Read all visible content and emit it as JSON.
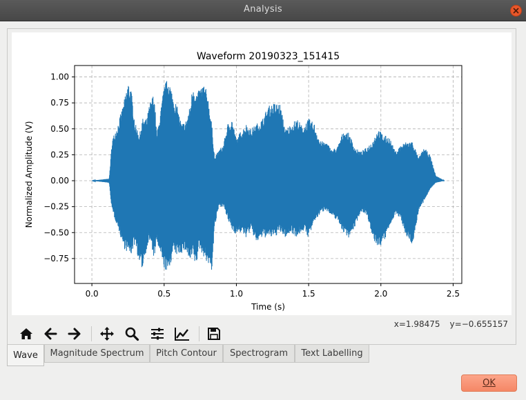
{
  "window": {
    "title": "Analysis"
  },
  "toolbar": {
    "icons": [
      "home-icon",
      "back-arrow-icon",
      "forward-arrow-icon",
      "pan-move-icon",
      "zoom-magnifier-icon",
      "configure-subplots-icon",
      "edit-axis-curve-icon",
      "save-floppy-icon"
    ]
  },
  "status": {
    "x_readout": "x=1.98475",
    "y_readout": "y=−0.655157"
  },
  "tabs": [
    {
      "label": "Wave",
      "active": true
    },
    {
      "label": "Magnitude Spectrum",
      "active": false
    },
    {
      "label": "Pitch Contour",
      "active": false
    },
    {
      "label": "Spectrogram",
      "active": false
    },
    {
      "label": "Text Labelling",
      "active": false
    }
  ],
  "dialog": {
    "ok_label": "OK"
  },
  "colors": {
    "waveform": "#1f77b4",
    "grid": "#b0b0b0",
    "ok_button": "#f58766",
    "close_button": "#e8572a"
  },
  "chart_data": {
    "type": "line",
    "title": "Waveform 20190323_151415",
    "xlabel": "Time (s)",
    "ylabel": "Normalized Amplitude (V)",
    "xlim": [
      -0.12,
      2.56
    ],
    "ylim": [
      -0.99,
      1.11
    ],
    "xticks": [
      "0.0",
      "0.5",
      "1.0",
      "1.5",
      "2.0",
      "2.5"
    ],
    "xtick_values": [
      0.0,
      0.5,
      1.0,
      1.5,
      2.0,
      2.5
    ],
    "yticks": [
      "1.00",
      "0.75",
      "0.50",
      "0.25",
      "0.00",
      "−0.25",
      "−0.50",
      "−0.75"
    ],
    "ytick_values": [
      1.0,
      0.75,
      0.5,
      0.25,
      0.0,
      -0.25,
      -0.5,
      -0.75
    ],
    "grid": true,
    "series": [
      {
        "envelope_time": [
          0.0,
          0.12,
          0.14,
          0.18,
          0.22,
          0.25,
          0.27,
          0.3,
          0.33,
          0.35,
          0.38,
          0.4,
          0.43,
          0.45,
          0.48,
          0.5,
          0.53,
          0.56,
          0.59,
          0.62,
          0.65,
          0.68,
          0.7,
          0.72,
          0.74,
          0.77,
          0.8,
          0.83,
          0.85,
          0.88,
          0.91,
          0.94,
          0.97,
          1.0,
          1.03,
          1.07,
          1.1,
          1.14,
          1.18,
          1.22,
          1.26,
          1.3,
          1.34,
          1.38,
          1.42,
          1.46,
          1.5,
          1.54,
          1.58,
          1.62,
          1.66,
          1.7,
          1.74,
          1.78,
          1.82,
          1.86,
          1.9,
          1.94,
          1.98,
          2.02,
          2.06,
          2.1,
          2.14,
          2.18,
          2.22,
          2.26,
          2.3,
          2.34,
          2.38,
          2.44
        ],
        "envelope_upper": [
          0.0,
          0.02,
          0.4,
          0.55,
          0.75,
          0.96,
          0.9,
          0.55,
          0.45,
          0.6,
          0.6,
          0.75,
          0.85,
          0.45,
          0.72,
          0.92,
          1.0,
          0.83,
          0.72,
          0.55,
          0.58,
          0.72,
          0.95,
          0.85,
          0.87,
          0.95,
          0.85,
          0.55,
          0.22,
          0.3,
          0.35,
          0.55,
          0.6,
          0.4,
          0.48,
          0.55,
          0.5,
          0.55,
          0.6,
          0.72,
          0.75,
          0.75,
          0.5,
          0.55,
          0.6,
          0.52,
          0.6,
          0.55,
          0.38,
          0.38,
          0.3,
          0.33,
          0.48,
          0.46,
          0.32,
          0.28,
          0.32,
          0.38,
          0.5,
          0.44,
          0.42,
          0.28,
          0.35,
          0.38,
          0.38,
          0.22,
          0.32,
          0.25,
          0.05,
          0.0
        ],
        "envelope_lower": [
          0.0,
          -0.02,
          -0.3,
          -0.45,
          -0.65,
          -0.7,
          -0.72,
          -0.6,
          -0.82,
          -0.85,
          -0.65,
          -0.58,
          -0.75,
          -0.6,
          -0.75,
          -0.85,
          -0.9,
          -0.7,
          -0.72,
          -0.7,
          -0.68,
          -0.8,
          -0.72,
          -0.85,
          -0.65,
          -0.72,
          -0.8,
          -0.87,
          -0.45,
          -0.25,
          -0.25,
          -0.38,
          -0.48,
          -0.52,
          -0.5,
          -0.55,
          -0.48,
          -0.6,
          -0.55,
          -0.55,
          -0.55,
          -0.5,
          -0.55,
          -0.5,
          -0.55,
          -0.48,
          -0.55,
          -0.4,
          -0.32,
          -0.28,
          -0.35,
          -0.38,
          -0.5,
          -0.55,
          -0.45,
          -0.3,
          -0.32,
          -0.55,
          -0.65,
          -0.6,
          -0.45,
          -0.32,
          -0.38,
          -0.55,
          -0.62,
          -0.3,
          -0.2,
          -0.08,
          -0.02,
          0.0
        ]
      }
    ]
  }
}
